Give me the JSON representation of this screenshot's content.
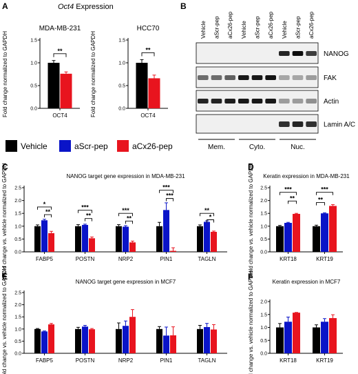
{
  "figure": {
    "panel_labels": {
      "A": "A",
      "B": "B",
      "C": "C",
      "D": "D",
      "E": "E",
      "F": "F"
    },
    "panelA_title_gene": "Oct4",
    "panelA_title_rest": " Expression",
    "colors": {
      "Vehicle": "#000000",
      "aScr-pep": "#0a14c8",
      "aCx26-pep": "#e8141e"
    }
  },
  "legend": {
    "items": [
      {
        "label": "Vehicle",
        "color": "#000000"
      },
      {
        "label": "aScr-pep",
        "color": "#0a14c8"
      },
      {
        "label": "aCx26-pep",
        "color": "#e8141e"
      }
    ]
  },
  "western_blot": {
    "lanes": [
      "Vehicle",
      "aScr-pep",
      "aCx26-pep",
      "Vehicle",
      "aScr-pep",
      "aCx26-pep",
      "Vehicle",
      "aScr-pep",
      "aCx26-pep"
    ],
    "rows": [
      "NANOG",
      "FAK",
      "Actin",
      "Lamin A/C"
    ],
    "groups": [
      "Mem.",
      "Cyto.",
      "Nuc."
    ]
  },
  "chart_data": [
    {
      "id": "A1",
      "type": "bar",
      "title": "MDA-MB-231",
      "ylabel": "Fold change normalized to GAPDH",
      "categories": [
        "OCT4"
      ],
      "ylim": [
        0,
        1.5
      ],
      "yticks": [
        "0.0",
        "0.5",
        "1.0",
        "1.5"
      ],
      "series": [
        {
          "name": "Vehicle",
          "values": [
            1.0
          ],
          "errors": [
            0.05
          ]
        },
        {
          "name": "aCx26-pep",
          "values": [
            0.76
          ],
          "errors": [
            0.04
          ]
        }
      ],
      "significance": [
        {
          "from": 0,
          "to": 1,
          "label": "**"
        }
      ]
    },
    {
      "id": "A2",
      "type": "bar",
      "title": "HCC70",
      "ylabel": "Fold change normalized to GAPDH",
      "categories": [
        "OCT4"
      ],
      "ylim": [
        0,
        1.5
      ],
      "yticks": [
        "0.0",
        "0.5",
        "1.0",
        "1.5"
      ],
      "series": [
        {
          "name": "Vehicle",
          "values": [
            1.0
          ],
          "errors": [
            0.07
          ]
        },
        {
          "name": "aCx26-pep",
          "values": [
            0.66
          ],
          "errors": [
            0.07
          ]
        }
      ],
      "significance": [
        {
          "from": 0,
          "to": 1,
          "label": "**"
        }
      ]
    },
    {
      "id": "C",
      "type": "bar",
      "title": "NANOG target gene expression in MDA-MB-231",
      "ylabel": "Fold change vs. vehicle normalized to GAPDH",
      "categories": [
        "FABP5",
        "POSTN",
        "NRP2",
        "PIN1",
        "TAGLN"
      ],
      "ylim": [
        0,
        2.5
      ],
      "yticks": [
        "0.0",
        "0.5",
        "1.0",
        "1.5",
        "2.0",
        "2.5"
      ],
      "series": [
        {
          "name": "Vehicle",
          "values": [
            1.0,
            1.0,
            1.0,
            1.0,
            1.0
          ],
          "errors": [
            0.05,
            0.06,
            0.06,
            0.15,
            0.05
          ]
        },
        {
          "name": "aScr-pep",
          "values": [
            1.23,
            1.05,
            0.98,
            1.63,
            1.17
          ],
          "errors": [
            0.04,
            0.03,
            0.04,
            0.28,
            0.04
          ]
        },
        {
          "name": "aCx26-pep",
          "values": [
            0.73,
            0.53,
            0.37,
            0.04,
            0.78
          ],
          "errors": [
            0.07,
            0.05,
            0.05,
            0.12,
            0.03
          ]
        }
      ],
      "significance": [
        {
          "cat": 0,
          "from": 0,
          "to": 2,
          "label": "*",
          "y": 1.75
        },
        {
          "cat": 0,
          "from": 1,
          "to": 2,
          "label": "**",
          "y": 1.45
        },
        {
          "cat": 1,
          "from": 0,
          "to": 2,
          "label": "***",
          "y": 1.62
        },
        {
          "cat": 1,
          "from": 1,
          "to": 2,
          "label": "**",
          "y": 1.3
        },
        {
          "cat": 2,
          "from": 0,
          "to": 2,
          "label": "***",
          "y": 1.5
        },
        {
          "cat": 2,
          "from": 1,
          "to": 2,
          "label": "**",
          "y": 1.2
        },
        {
          "cat": 3,
          "from": 0,
          "to": 2,
          "label": "***",
          "y": 2.4
        },
        {
          "cat": 3,
          "from": 1,
          "to": 2,
          "label": "***",
          "y": 2.08
        },
        {
          "cat": 4,
          "from": 0,
          "to": 2,
          "label": "**",
          "y": 1.5
        },
        {
          "cat": 4,
          "from": 1,
          "to": 2,
          "label": "*",
          "y": 1.25
        }
      ]
    },
    {
      "id": "D",
      "type": "bar",
      "title": "Keratin expression in MDA-MB-231",
      "ylabel": "Fold change vs. vehicle normalized to GAPDH",
      "categories": [
        "KRT18",
        "KRT19"
      ],
      "ylim": [
        0,
        2.5
      ],
      "yticks": [
        "0.0",
        "0.5",
        "1.0",
        "1.5",
        "2.0",
        "2.5"
      ],
      "series": [
        {
          "name": "Vehicle",
          "values": [
            1.0,
            1.0
          ],
          "errors": [
            0.03,
            0.04
          ]
        },
        {
          "name": "aScr-pep",
          "values": [
            1.13,
            1.5
          ],
          "errors": [
            0.02,
            0.02
          ]
        },
        {
          "name": "aCx26-pep",
          "values": [
            1.48,
            1.79
          ],
          "errors": [
            0.02,
            0.05
          ]
        }
      ],
      "significance": [
        {
          "cat": 0,
          "from": 0,
          "to": 2,
          "label": "***",
          "y": 2.32
        },
        {
          "cat": 0,
          "from": 1,
          "to": 2,
          "label": "**",
          "y": 1.98
        },
        {
          "cat": 1,
          "from": 0,
          "to": 2,
          "label": "***",
          "y": 2.32
        },
        {
          "cat": 1,
          "from": 0,
          "to": 1,
          "label": "**",
          "y": 1.92
        }
      ]
    },
    {
      "id": "E",
      "type": "bar",
      "title": "NANOG target gene expression in MCF7",
      "ylabel": "Fold change vs. vehicle normalized to GAPDH",
      "categories": [
        "FABP5",
        "POSTN",
        "NRP2",
        "PIN1",
        "TAGLN"
      ],
      "ylim": [
        0,
        2.5
      ],
      "yticks": [
        "0.0",
        "0.5",
        "1.0",
        "1.5",
        "2.0",
        "2.5"
      ],
      "series": [
        {
          "name": "Vehicle",
          "values": [
            1.0,
            1.0,
            1.0,
            1.0,
            1.0
          ],
          "errors": [
            0.02,
            0.07,
            0.25,
            0.1,
            0.15
          ]
        },
        {
          "name": "aScr-pep",
          "values": [
            0.9,
            1.1,
            1.13,
            0.73,
            1.08
          ],
          "errors": [
            0.02,
            0.05,
            0.2,
            0.35,
            0.15
          ]
        },
        {
          "name": "aCx26-pep",
          "values": [
            1.19,
            0.99,
            1.5,
            0.74,
            0.98
          ],
          "errors": [
            0.04,
            0.03,
            0.3,
            0.35,
            0.2
          ]
        }
      ],
      "significance": []
    },
    {
      "id": "F",
      "type": "bar",
      "title": "Keratin expression in MCF7",
      "ylabel": "Fold change vs. vehicle normalized to GAPDH",
      "categories": [
        "KRT18",
        "KRT19"
      ],
      "ylim": [
        0,
        2.0
      ],
      "yticks": [
        "0.0",
        "0.5",
        "1.0",
        "1.5",
        "2.0"
      ],
      "series": [
        {
          "name": "Vehicle",
          "values": [
            1.0,
            1.0
          ],
          "errors": [
            0.15,
            0.1
          ]
        },
        {
          "name": "aScr-pep",
          "values": [
            1.22,
            1.22
          ],
          "errors": [
            0.18,
            0.12
          ]
        },
        {
          "name": "aCx26-pep",
          "values": [
            1.57,
            1.36
          ],
          "errors": [
            0.01,
            0.13
          ]
        }
      ],
      "significance": []
    }
  ]
}
